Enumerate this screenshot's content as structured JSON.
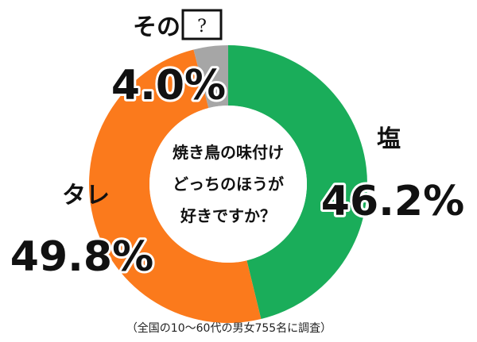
{
  "chart_data": {
    "type": "pie",
    "donut": true,
    "title": "焼き鳥の味付け\nどっちのほうが\n好きですか？",
    "categories": [
      "塩",
      "タレ",
      "その"
    ],
    "values": [
      46.2,
      49.8,
      4.0
    ],
    "value_labels": [
      "46.2%",
      "49.8%",
      "4.0%"
    ],
    "colors": [
      "#1aad5a",
      "#fb7a1c",
      "#a6a6a6"
    ],
    "other_box_text": "?",
    "footnote": "（全国の10〜60代の男女755名に調査）"
  }
}
